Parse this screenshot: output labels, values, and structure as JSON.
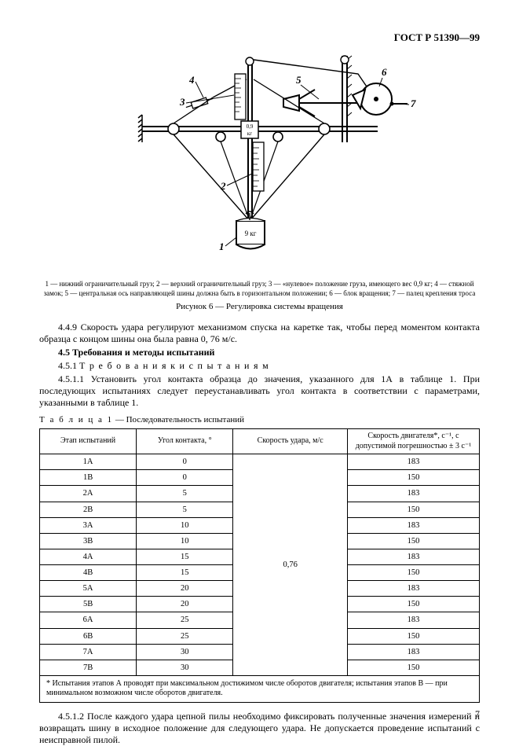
{
  "header": {
    "doc_id": "ГОСТ Р 51390—99"
  },
  "figure": {
    "labels": [
      "1",
      "2",
      "3",
      "4",
      "5",
      "6",
      "7"
    ],
    "box_label_top": "0,9",
    "box_label_bot": "кг",
    "weight_label": "9 кг",
    "legend": "1 — нижний ограничительный груз; 2 — верхний ограничительный груз; 3 — «нулевое» положение груза, имеющего вес 0,9  кг; 4 — стяжной замок; 5 — центральная ось направляющей шины должна быть в горизонтальном положении; 6 — блок вращения; 7 — палец крепления троса",
    "caption": "Рисунок 6 — Регулировка системы вращения"
  },
  "text": {
    "p449": "4.4.9 Скорость удара регулируют механизмом спуска на каретке так, чтобы перед моментом контакта образца с концом шины она была равна 0, 76  м/с.",
    "p45": "4.5 Требования и методы испытаний",
    "p451_lead": "4.5.1 ",
    "p451": "Т р е б о в а н и я   к   и с п ы т а н и я м",
    "p4511": "4.5.1.1 Установить угол контакта образца до значения, указанного для 1А в таблице 1. При последующих испытаниях следует переустанавливать угол контакта в соответствии с параметрами, указанными в таблице 1.",
    "p4512": "4.5.1.2 После каждого удара цепной пилы необходимо фиксировать полученные значения измерений и возвращать шину в исходное положение для следующего удара. Не допускается проведение испытаний с неисправной пилой."
  },
  "table": {
    "caption_num": "Т а б л и ц а   1",
    "caption_rest": " — Последовательность испытаний",
    "columns": [
      "Этап испытаний",
      "Угол контакта, °",
      "Скорость удара, м/с",
      "Скорость двигателя*, с⁻¹, с допустимой погрешностью ± 3 с⁻¹"
    ],
    "speed_merged": "0,76",
    "rows": [
      {
        "etap": "1A",
        "ugol": "0",
        "eng": "183"
      },
      {
        "etap": "1B",
        "ugol": "0",
        "eng": "150"
      },
      {
        "etap": "2A",
        "ugol": "5",
        "eng": "183"
      },
      {
        "etap": "2B",
        "ugol": "5",
        "eng": "150"
      },
      {
        "etap": "3A",
        "ugol": "10",
        "eng": "183"
      },
      {
        "etap": "3B",
        "ugol": "10",
        "eng": "150"
      },
      {
        "etap": "4A",
        "ugol": "15",
        "eng": "183"
      },
      {
        "etap": "4B",
        "ugol": "15",
        "eng": "150"
      },
      {
        "etap": "5A",
        "ugol": "20",
        "eng": "183"
      },
      {
        "etap": "5B",
        "ugol": "20",
        "eng": "150"
      },
      {
        "etap": "6A",
        "ugol": "25",
        "eng": "183"
      },
      {
        "etap": "6B",
        "ugol": "25",
        "eng": "150"
      },
      {
        "etap": "7A",
        "ugol": "30",
        "eng": "183"
      },
      {
        "etap": "7B",
        "ugol": "30",
        "eng": "150"
      }
    ],
    "footnote": "* Испытания этапов А проводят при максимальном достижимом числе оборотов двигателя; испытания этапов В — при минимальном возможном числе оборотов двигателя."
  },
  "page_number": "7",
  "style": {
    "font_body_pt": 12,
    "font_small_pt": 10,
    "color_text": "#000000",
    "color_bg": "#ffffff",
    "border_color": "#000000"
  }
}
